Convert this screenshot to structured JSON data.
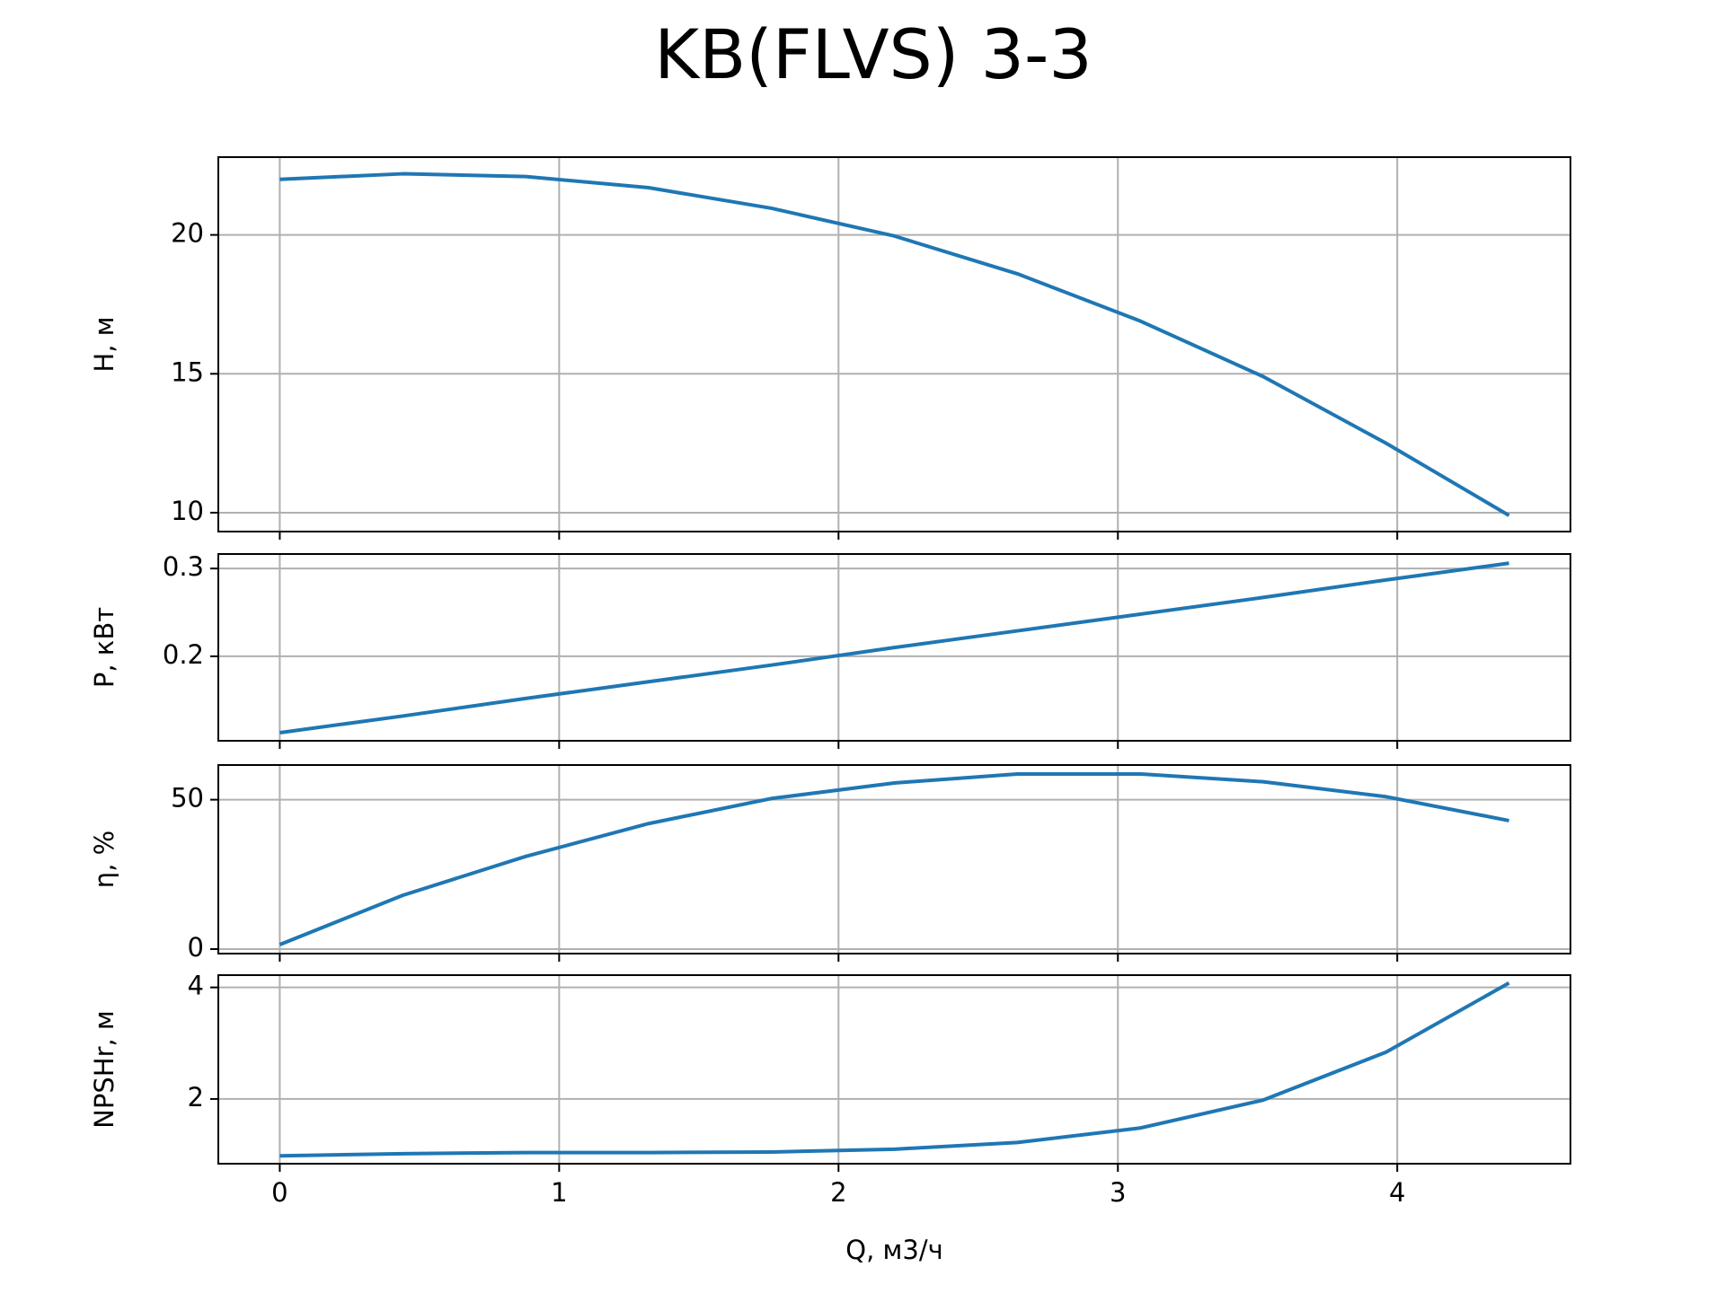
{
  "title": "KB(FLVS) 3-3",
  "chart_data": [
    {
      "type": "line",
      "ylabel": "H, м",
      "x": [
        0,
        0.44,
        0.88,
        1.32,
        1.76,
        2.2,
        2.64,
        3.08,
        3.52,
        3.96,
        4.4
      ],
      "series": [
        {
          "color": "#1f77b4",
          "values": [
            22.0,
            22.2,
            22.1,
            21.7,
            20.96,
            19.96,
            18.6,
            16.9,
            14.9,
            12.5,
            9.9
          ]
        }
      ],
      "xlim": [
        -0.22,
        4.62
      ],
      "xticks": [
        0,
        1,
        2,
        3,
        4
      ],
      "ylim": [
        9.32,
        22.8
      ],
      "yticks": [
        10,
        15,
        20
      ],
      "grid": true
    },
    {
      "type": "line",
      "ylabel": "P, кВт",
      "x": [
        0,
        0.44,
        0.88,
        1.32,
        1.76,
        2.2,
        2.64,
        3.08,
        3.52,
        3.96,
        4.4
      ],
      "series": [
        {
          "color": "#1f77b4",
          "values": [
            0.113,
            0.132,
            0.152,
            0.171,
            0.19,
            0.21,
            0.229,
            0.248,
            0.267,
            0.287,
            0.306
          ]
        }
      ],
      "xlim": [
        -0.22,
        4.62
      ],
      "xticks": [
        0,
        1,
        2,
        3,
        4
      ],
      "ylim": [
        0.1038,
        0.3165
      ],
      "yticks": [
        0.2,
        0.3
      ],
      "grid": true
    },
    {
      "type": "line",
      "ylabel": "η, %",
      "x": [
        0,
        0.44,
        0.88,
        1.32,
        1.76,
        2.2,
        2.64,
        3.08,
        3.52,
        3.96,
        4.4
      ],
      "series": [
        {
          "color": "#1f77b4",
          "values": [
            1.5,
            18,
            31,
            42,
            50.4,
            55.6,
            58.6,
            58.6,
            56,
            51,
            43
          ]
        }
      ],
      "xlim": [
        -0.22,
        4.62
      ],
      "xticks": [
        0,
        1,
        2,
        3,
        4
      ],
      "ylim": [
        -1.5,
        61.6
      ],
      "yticks": [
        0,
        50
      ],
      "grid": true
    },
    {
      "type": "line",
      "ylabel": "NPSHr, м",
      "xlabel": "Q, м3/ч",
      "x": [
        0,
        0.44,
        0.88,
        1.32,
        1.76,
        2.2,
        2.64,
        3.08,
        3.52,
        3.96,
        4.4
      ],
      "series": [
        {
          "color": "#1f77b4",
          "values": [
            0.98,
            1.02,
            1.04,
            1.04,
            1.05,
            1.1,
            1.22,
            1.48,
            1.98,
            2.84,
            4.08
          ]
        }
      ],
      "xlim": [
        -0.22,
        4.62
      ],
      "xticks": [
        0,
        1,
        2,
        3,
        4
      ],
      "ylim": [
        0.84,
        4.22
      ],
      "yticks": [
        2,
        4
      ],
      "grid": true
    }
  ]
}
